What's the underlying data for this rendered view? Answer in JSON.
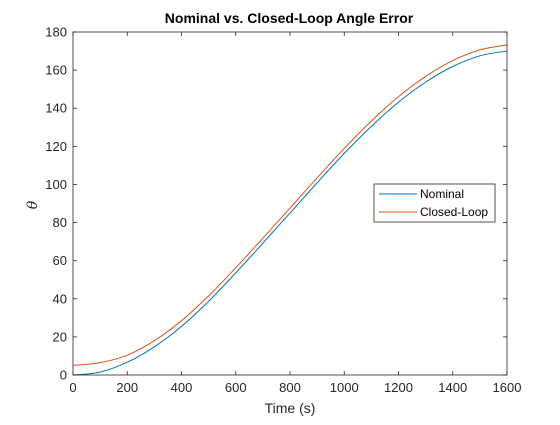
{
  "chart_data": {
    "type": "line",
    "title": "Nominal vs. Closed-Loop Angle Error",
    "xlabel": "Time (s)",
    "ylabel": "θ",
    "xlim": [
      0,
      1600
    ],
    "ylim": [
      0,
      180
    ],
    "xticks": [
      0,
      200,
      400,
      600,
      800,
      1000,
      1200,
      1400,
      1600
    ],
    "yticks": [
      0,
      20,
      40,
      60,
      80,
      100,
      120,
      140,
      160,
      180
    ],
    "grid": false,
    "legend_location": "right, mid-height",
    "x": [
      0,
      100,
      200,
      300,
      400,
      500,
      600,
      700,
      800,
      900,
      1000,
      1100,
      1200,
      1300,
      1400,
      1500,
      1600
    ],
    "series": [
      {
        "name": "Nominal",
        "color": "#0072BD",
        "values": [
          0,
          1.5,
          6.7,
          14.8,
          25.5,
          38.7,
          53.6,
          69.2,
          85.0,
          100.9,
          116.3,
          130.5,
          143.2,
          153.7,
          161.9,
          167.5,
          170.0
        ]
      },
      {
        "name": "Closed-Loop",
        "color": "#D95319",
        "values": [
          5.0,
          6.5,
          10.4,
          18.0,
          28.5,
          41.5,
          56.3,
          71.8,
          87.6,
          103.5,
          118.9,
          133.3,
          146.1,
          156.7,
          165.0,
          170.6,
          173.2
        ]
      }
    ]
  }
}
